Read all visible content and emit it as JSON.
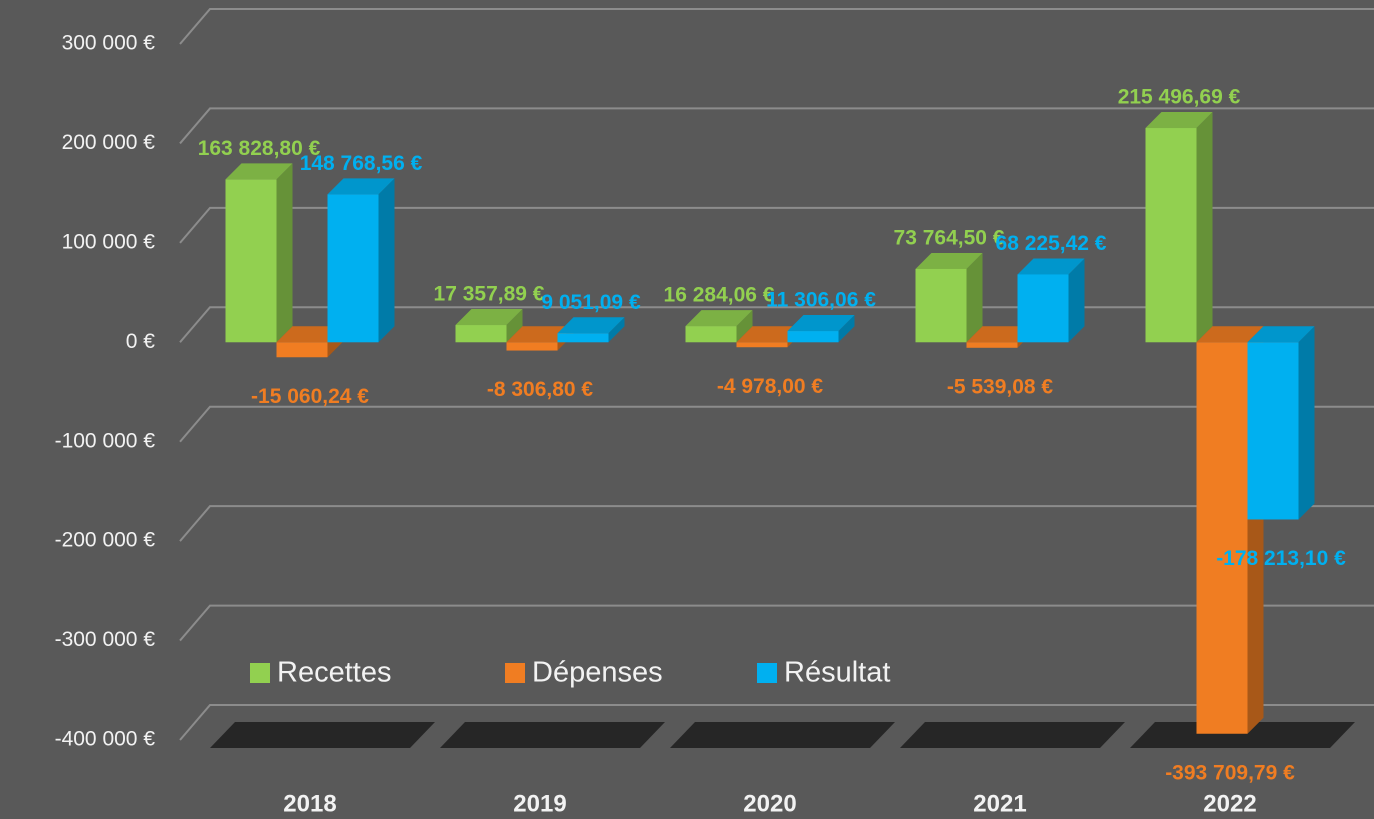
{
  "chart_data": {
    "type": "bar3d",
    "categories": [
      "2018",
      "2019",
      "2020",
      "2021",
      "2022"
    ],
    "series": [
      {
        "name": "Recettes",
        "color": "#92d050",
        "values": [
          163828.8,
          17357.89,
          16284.06,
          73764.5,
          215496.69
        ],
        "value_labels": [
          "163 828,80 €",
          "17 357,89 €",
          "16 284,06 €",
          "73 764,50 €",
          "215 496,69 €"
        ]
      },
      {
        "name": "Dépenses",
        "color": "#f07d22",
        "values": [
          -15060.24,
          -8306.8,
          -4978.0,
          -5539.08,
          -393709.79
        ],
        "value_labels": [
          "-15 060,24 €",
          "-8 306,80 €",
          "-4 978,00 €",
          "-5 539,08 €",
          "-393 709,79 €"
        ]
      },
      {
        "name": "Résultat",
        "color": "#00b0f0",
        "values": [
          148768.56,
          9051.09,
          11306.06,
          68225.42,
          -178213.1
        ],
        "value_labels": [
          "148 768,56 €",
          "9 051,09 €",
          "11 306,06 €",
          "68 225,42 €",
          "-178 213,10 €"
        ]
      }
    ],
    "ylim": [
      -400000,
      300000
    ],
    "yticks": [
      {
        "value": -400000,
        "label": "-400 000 €"
      },
      {
        "value": -300000,
        "label": "-300 000 €"
      },
      {
        "value": -200000,
        "label": "-200 000 €"
      },
      {
        "value": -100000,
        "label": "-100 000 €"
      },
      {
        "value": 0,
        "label": "0 €"
      },
      {
        "value": 100000,
        "label": "100 000 €"
      },
      {
        "value": 200000,
        "label": "200 000 €"
      },
      {
        "value": 300000,
        "label": "300 000 €"
      }
    ],
    "grid": true,
    "legend": "bottom-left"
  }
}
